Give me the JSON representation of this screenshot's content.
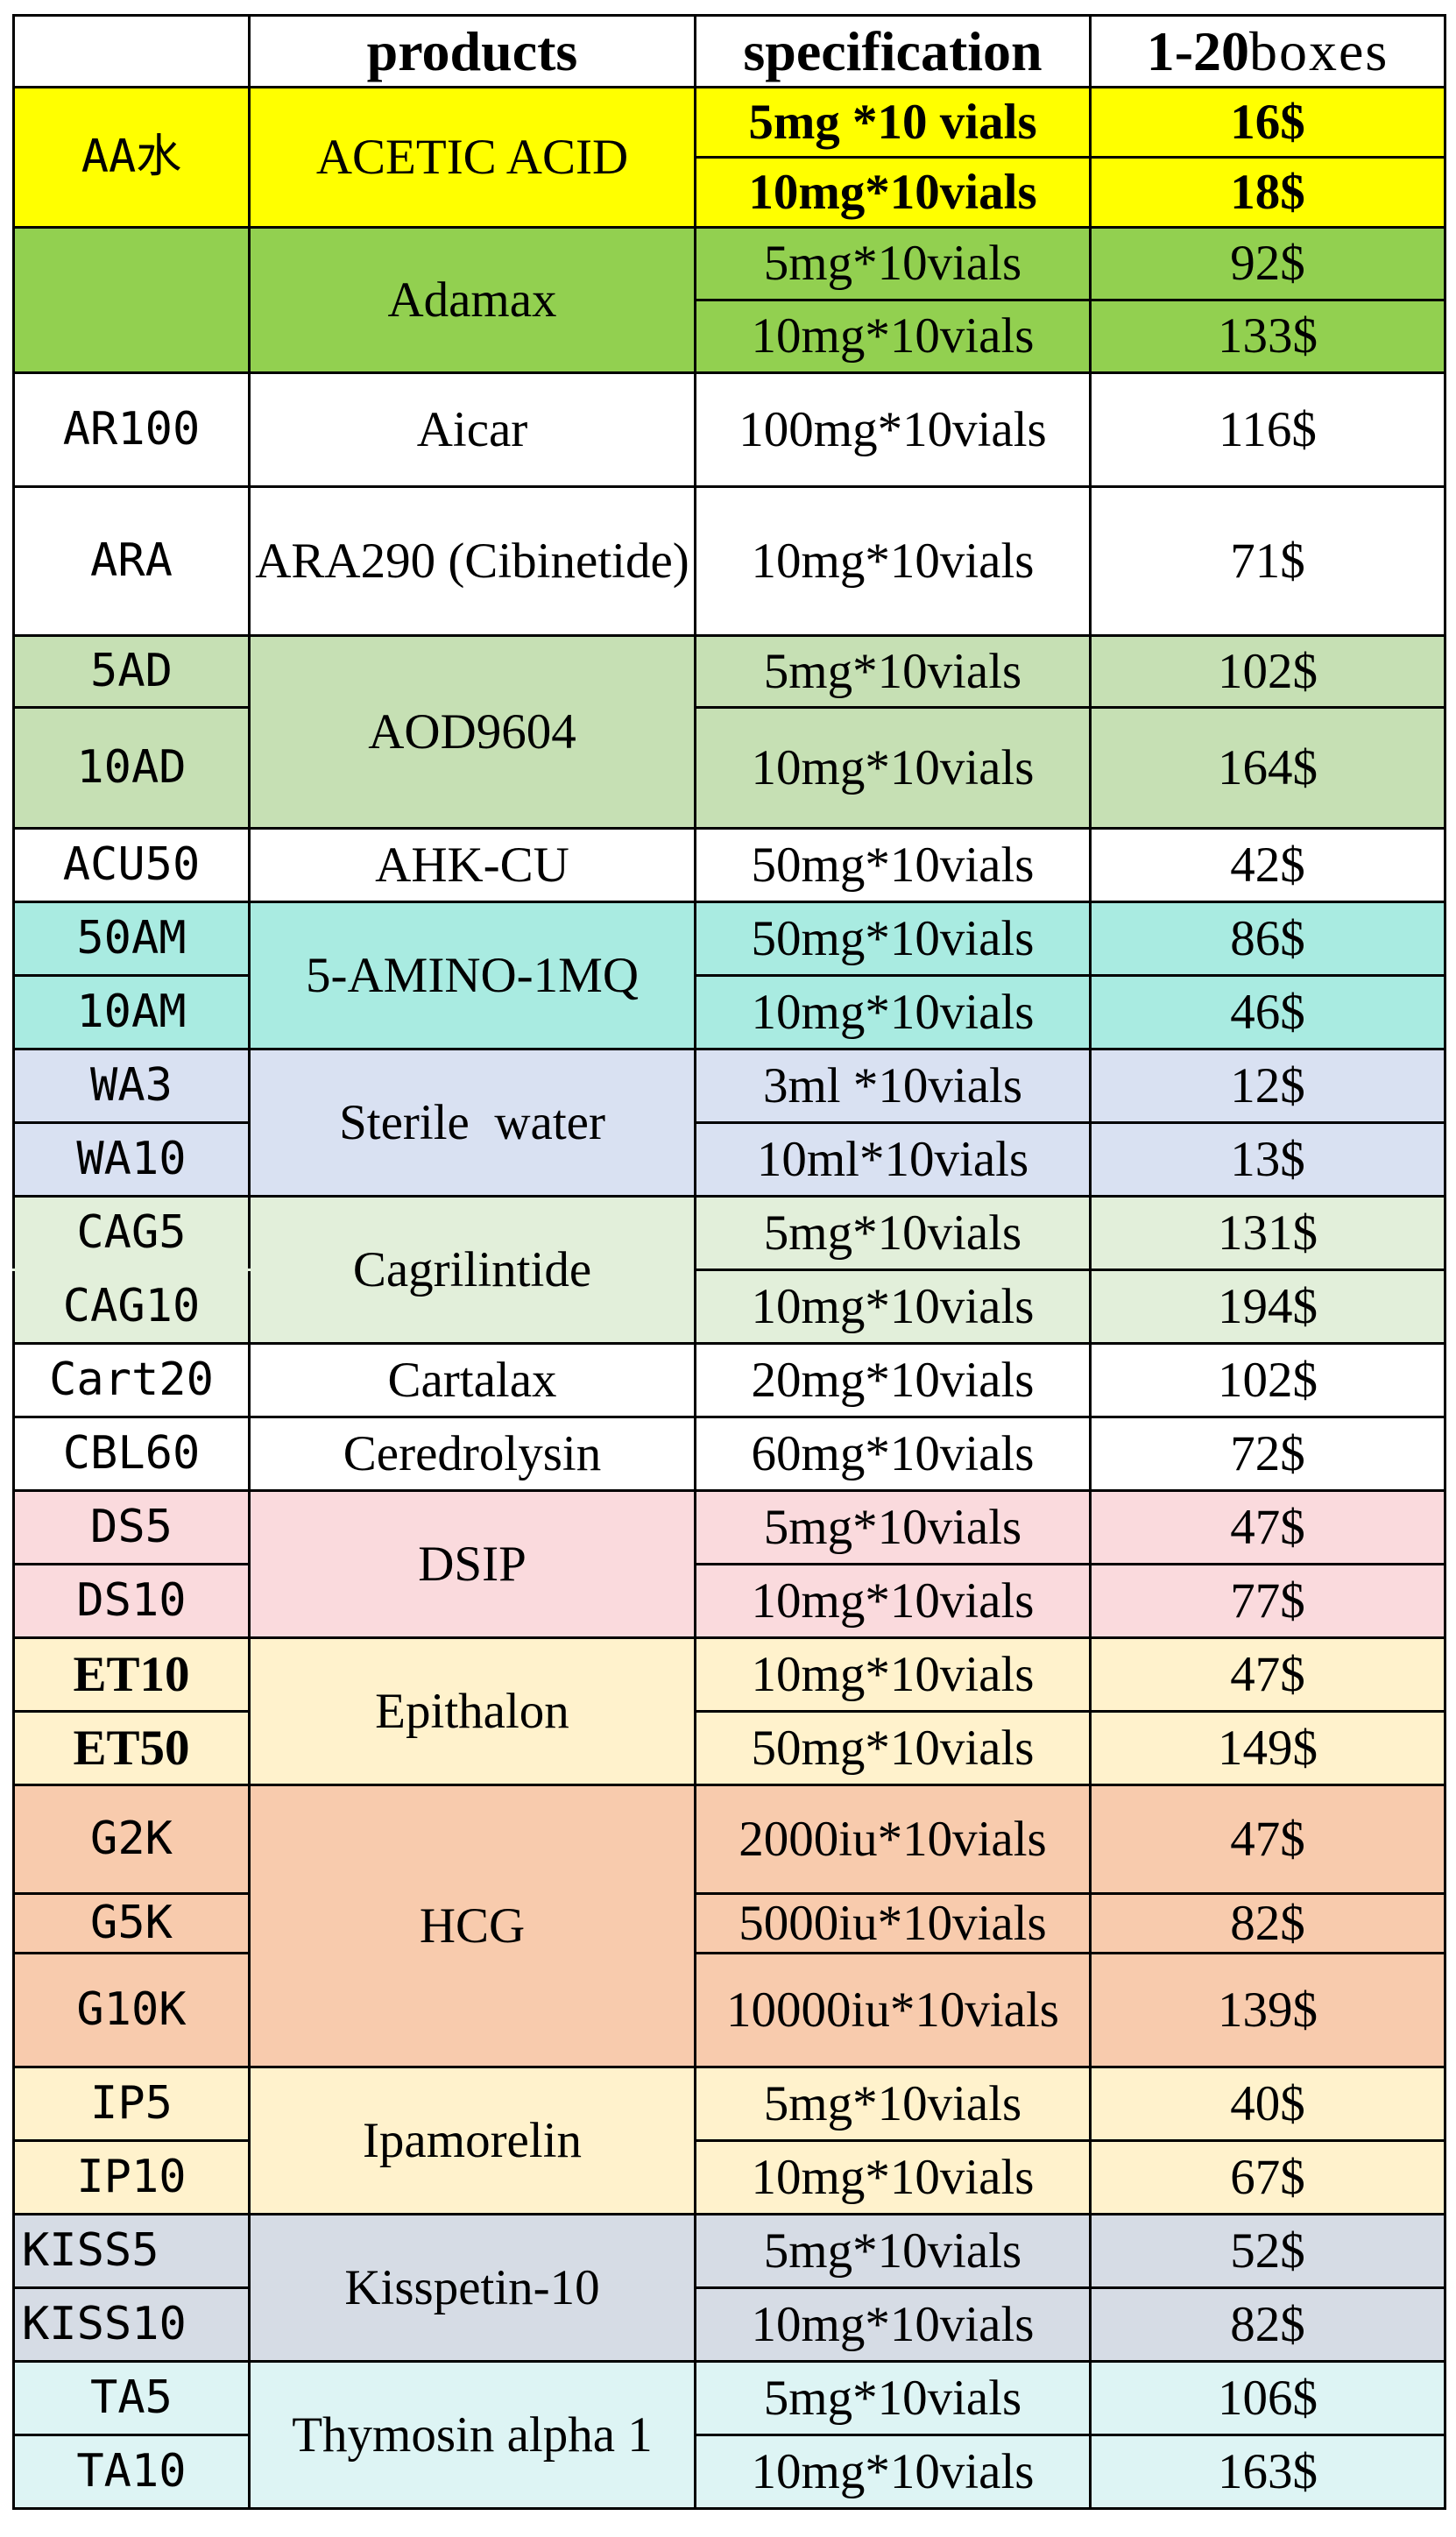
{
  "header": {
    "code": "",
    "products": "products",
    "specification": "specification",
    "boxes_bold": "1-20",
    "boxes_rest": "boxes"
  },
  "rows": {
    "acetic": {
      "code": "AA水",
      "product": "ACETIC ACID",
      "spec1": "5mg *10 vials",
      "price1": "16$",
      "spec2": "10mg*10vials",
      "price2": "18$"
    },
    "adamax": {
      "code": "",
      "product": "Adamax",
      "spec1": "5mg*10vials",
      "price1": "92$",
      "spec2": "10mg*10vials",
      "price2": "133$"
    },
    "aicar": {
      "code": "AR100",
      "product": "Aicar",
      "spec1": "100mg*10vials",
      "price1": "116$"
    },
    "ara": {
      "code": "ARA",
      "product": "ARA290 (Cibinetide)",
      "spec1": "10mg*10vials",
      "price1": "71$"
    },
    "aod": {
      "code1": "5AD",
      "code2": "10AD",
      "product": "AOD9604",
      "spec1": "5mg*10vials",
      "price1": "102$",
      "spec2": "10mg*10vials",
      "price2": "164$"
    },
    "ahk": {
      "code": "ACU50",
      "product": "AHK-CU",
      "spec1": "50mg*10vials",
      "price1": "42$"
    },
    "amino": {
      "code1": "50AM",
      "code2": "10AM",
      "product": "5-AMINO-1MQ",
      "spec1": "50mg*10vials",
      "price1": "86$",
      "spec2": "10mg*10vials",
      "price2": "46$"
    },
    "water": {
      "code1": "WA3",
      "code2": "WA10",
      "product": "Sterile  water",
      "spec1": "3ml *10vials",
      "price1": "12$",
      "spec2": "10ml*10vials",
      "price2": "13$"
    },
    "cagri": {
      "code1": "CAG5",
      "code2": "CAG10",
      "product": "Cagrilintide",
      "spec1": "5mg*10vials",
      "price1": "131$",
      "spec2": "10mg*10vials",
      "price2": "194$"
    },
    "cartalax": {
      "code": "Cart20",
      "product": "Cartalax",
      "spec1": "20mg*10vials",
      "price1": "102$"
    },
    "cerebro": {
      "code": "CBL60",
      "product": "Ceredrolysin",
      "spec1": "60mg*10vials",
      "price1": "72$"
    },
    "dsip": {
      "code1": "DS5",
      "code2": "DS10",
      "product": "DSIP",
      "spec1": "5mg*10vials",
      "price1": "47$",
      "spec2": "10mg*10vials",
      "price2": "77$"
    },
    "epithalon": {
      "code1": "ET10",
      "code2": "ET50",
      "product": "Epithalon",
      "spec1": "10mg*10vials",
      "price1": "47$",
      "spec2": "50mg*10vials",
      "price2": "149$"
    },
    "hcg": {
      "code1": "G2K",
      "code2": "G5K",
      "code3": "G10K",
      "product": "HCG",
      "spec1": "2000iu*10vials",
      "price1": "47$",
      "spec2": "5000iu*10vials",
      "price2": "82$",
      "spec3": "10000iu*10vials",
      "price3": "139$"
    },
    "ipamorelin": {
      "code1": "IP5",
      "code2": "IP10",
      "product": "Ipamorelin",
      "spec1": "5mg*10vials",
      "price1": "40$",
      "spec2": "10mg*10vials",
      "price2": "67$"
    },
    "kisspeptin": {
      "code1": "KISS5",
      "code2": "KISS10",
      "product": "Kisspetin-10",
      "spec1": "5mg*10vials",
      "price1": "52$",
      "spec2": "10mg*10vials",
      "price2": "82$"
    },
    "thymosin": {
      "code1": "TA5",
      "code2": "TA10",
      "product": "Thymosin alpha 1",
      "spec1": "5mg*10vials",
      "price1": "106$",
      "spec2": "10mg*10vials",
      "price2": "163$"
    }
  },
  "colors": {
    "yellow": "#ffff00",
    "green": "#92d050",
    "light_green": "#c6e0b4",
    "teal": "#a9ebe1",
    "blue": "#d9e1f2",
    "mint": "#e2efda",
    "pink": "#fadadd",
    "cream": "#fff2cc",
    "orange": "#f8cbad",
    "gray": "#d6dce5",
    "cyan": "#ddf4f4"
  }
}
